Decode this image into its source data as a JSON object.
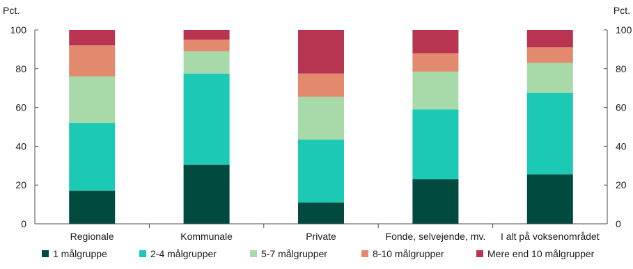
{
  "chart_data": {
    "type": "bar",
    "stacked": true,
    "y_unit_left": "Pct.",
    "y_unit_right": "Pct.",
    "ylim": [
      0,
      100
    ],
    "yticks": [
      0,
      20,
      40,
      60,
      80,
      100
    ],
    "grid": false,
    "legend_position": "bottom",
    "categories": [
      "Regionale",
      "Kommunale",
      "Private",
      "Fonde, selvejende, mv.",
      "I alt på voksenområdet"
    ],
    "series": [
      {
        "name": "1 målgruppe",
        "color": "#004a3f",
        "values": [
          17,
          30.5,
          11,
          23,
          25.5
        ]
      },
      {
        "name": "2-4 målgrupper",
        "color": "#1bc9b5",
        "values": [
          35,
          47,
          32.5,
          36,
          42
        ]
      },
      {
        "name": "5-7 målgrupper",
        "color": "#a8d9a8",
        "values": [
          24,
          11.5,
          22,
          19.5,
          15.5
        ]
      },
      {
        "name": "8-10 målgrupper",
        "color": "#e38a6e",
        "values": [
          16,
          6,
          12,
          9.5,
          8
        ]
      },
      {
        "name": "Mere end 10 målgrupper",
        "color": "#b83552",
        "values": [
          8,
          5,
          22.5,
          12,
          9
        ]
      }
    ]
  }
}
